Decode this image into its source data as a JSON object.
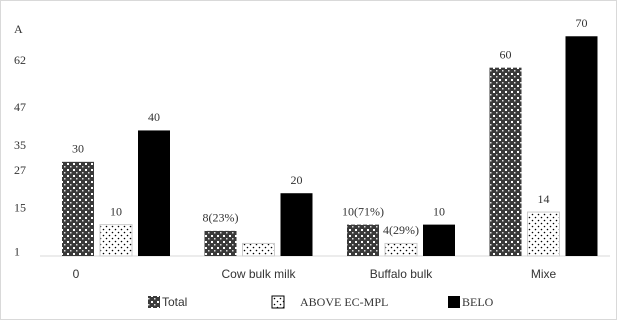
{
  "chart_data": {
    "type": "bar",
    "y_axis_label": "A",
    "categories": [
      "0",
      "Cow bulk milk",
      "Buffalo bulk",
      "Mixe"
    ],
    "series": [
      {
        "name": "Total",
        "color": "#3a3a3a",
        "values": [
          30,
          8,
          10,
          60
        ],
        "value_labels": [
          "30",
          "8(23%)",
          "10(71%)",
          "60"
        ]
      },
      {
        "name": "ABOVE EC-MPL",
        "color": "#ffffff",
        "values": [
          10,
          4,
          4,
          14
        ],
        "value_labels": [
          "10",
          "",
          "4(29%)",
          "14"
        ]
      },
      {
        "name": "BELO",
        "color": "#000000",
        "values": [
          40,
          20,
          10,
          70
        ]
      }
    ],
    "ylim": [
      0,
      72
    ],
    "yticks": [
      1,
      15,
      27,
      35,
      47,
      62
    ],
    "legend": "bottom"
  }
}
